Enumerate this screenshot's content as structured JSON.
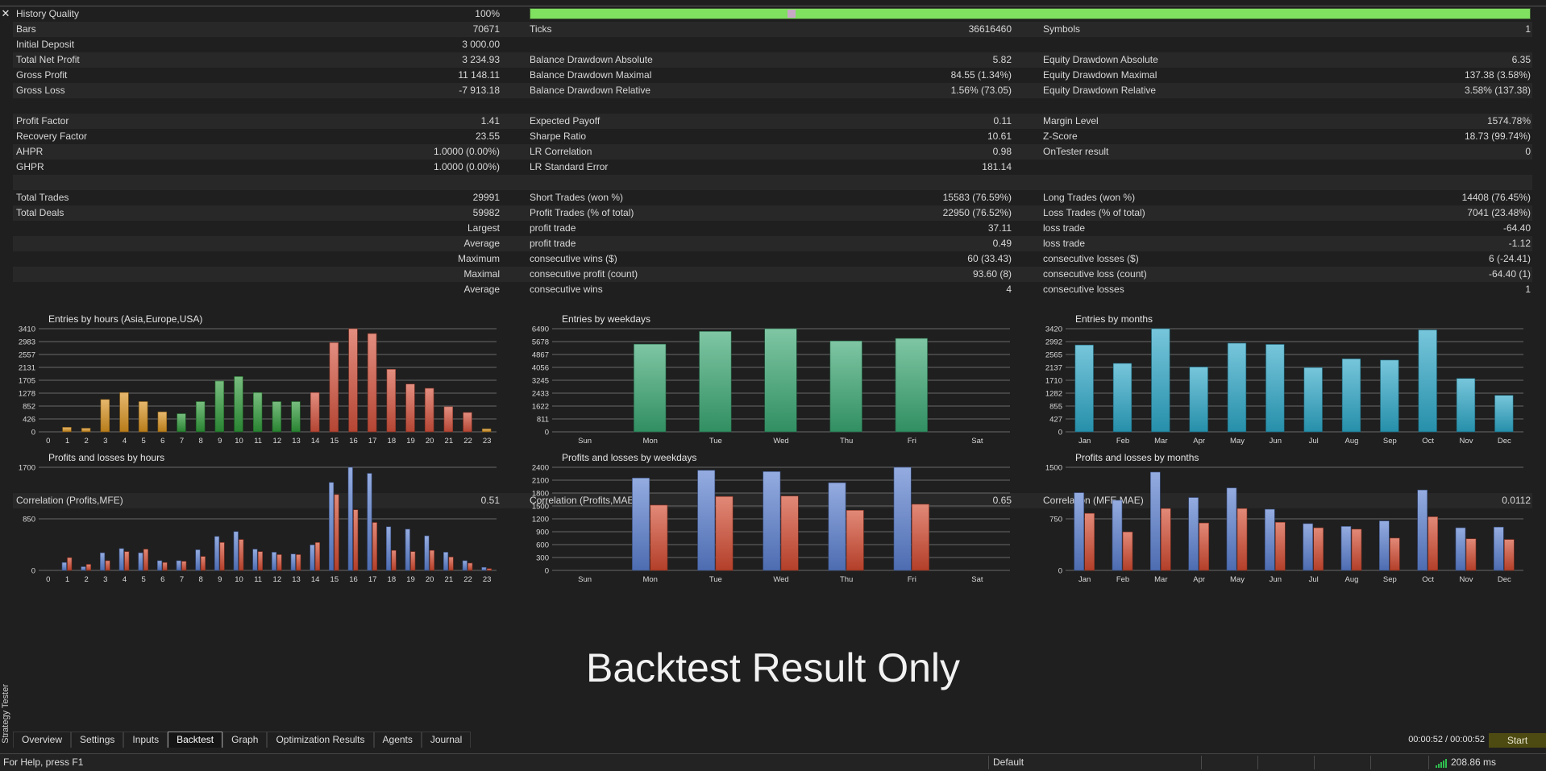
{
  "panel": {
    "side_label": "Strategy Tester",
    "close_icon": "close-icon"
  },
  "stats": {
    "history_quality": {
      "label": "History Quality",
      "value": "100%",
      "bar_fraction": 1.0
    },
    "rows": [
      {
        "c1": [
          "Bars",
          "70671"
        ],
        "c2": [
          "Ticks",
          "36616460"
        ],
        "c3": [
          "Symbols",
          "1"
        ]
      },
      {
        "c1": [
          "Initial Deposit",
          "3 000.00"
        ],
        "c2": [
          "",
          ""
        ],
        "c3": [
          "",
          ""
        ]
      },
      {
        "c1": [
          "Total Net Profit",
          "3 234.93"
        ],
        "c2": [
          "Balance Drawdown Absolute",
          "5.82"
        ],
        "c3": [
          "Equity Drawdown Absolute",
          "6.35"
        ]
      },
      {
        "c1": [
          "Gross Profit",
          "11 148.11"
        ],
        "c2": [
          "Balance Drawdown Maximal",
          "84.55 (1.34%)"
        ],
        "c3": [
          "Equity Drawdown Maximal",
          "137.38 (3.58%)"
        ]
      },
      {
        "c1": [
          "Gross Loss",
          "-7 913.18"
        ],
        "c2": [
          "Balance Drawdown Relative",
          "1.56% (73.05)"
        ],
        "c3": [
          "Equity Drawdown Relative",
          "3.58% (137.38)"
        ]
      },
      {
        "c1": [
          "",
          ""
        ],
        "c2": [
          "",
          ""
        ],
        "c3": [
          "",
          ""
        ]
      },
      {
        "c1": [
          "Profit Factor",
          "1.41"
        ],
        "c2": [
          "Expected Payoff",
          "0.11"
        ],
        "c3": [
          "Margin Level",
          "1574.78%"
        ]
      },
      {
        "c1": [
          "Recovery Factor",
          "23.55"
        ],
        "c2": [
          "Sharpe Ratio",
          "10.61"
        ],
        "c3": [
          "Z-Score",
          "18.73 (99.74%)"
        ]
      },
      {
        "c1": [
          "AHPR",
          "1.0000 (0.00%)"
        ],
        "c2": [
          "LR Correlation",
          "0.98"
        ],
        "c3": [
          "OnTester result",
          "0"
        ]
      },
      {
        "c1": [
          "GHPR",
          "1.0000 (0.00%)"
        ],
        "c2": [
          "LR Standard Error",
          "181.14"
        ],
        "c3": [
          "",
          ""
        ]
      },
      {
        "c1": [
          "",
          ""
        ],
        "c2": [
          "",
          ""
        ],
        "c3": [
          "",
          ""
        ]
      },
      {
        "c1": [
          "Total Trades",
          "29991"
        ],
        "c2": [
          "Short Trades (won %)",
          "15583 (76.59%)"
        ],
        "c3": [
          "Long Trades (won %)",
          "14408 (76.45%)"
        ]
      },
      {
        "c1": [
          "Total Deals",
          "59982"
        ],
        "c2": [
          "Profit Trades (% of total)",
          "22950 (76.52%)"
        ],
        "c3": [
          "Loss Trades (% of total)",
          "7041 (23.48%)"
        ]
      },
      {
        "c1": [
          "",
          "Largest"
        ],
        "c2": [
          "profit trade",
          "37.11"
        ],
        "c3": [
          "loss trade",
          "-64.40"
        ]
      },
      {
        "c1": [
          "",
          "Average"
        ],
        "c2": [
          "profit trade",
          "0.49"
        ],
        "c3": [
          "loss trade",
          "-1.12"
        ]
      },
      {
        "c1": [
          "",
          "Maximum"
        ],
        "c2": [
          "consecutive wins ($)",
          "60 (33.43)"
        ],
        "c3": [
          "consecutive losses ($)",
          "6 (-24.41)"
        ]
      },
      {
        "c1": [
          "",
          "Maximal"
        ],
        "c2": [
          "consecutive profit (count)",
          "93.60 (8)"
        ],
        "c3": [
          "consecutive loss (count)",
          "-64.40 (1)"
        ]
      },
      {
        "c1": [
          "",
          "Average"
        ],
        "c2": [
          "consecutive wins",
          "4"
        ],
        "c3": [
          "consecutive losses",
          "1"
        ]
      }
    ],
    "correlation": {
      "c1": [
        "Correlation (Profits,MFE)",
        "0.51"
      ],
      "c2": [
        "Correlation (Profits,MAE)",
        "0.65"
      ],
      "c3": [
        "Correlation (MFE,MAE)",
        "0.0112"
      ]
    }
  },
  "chart_data": [
    {
      "type": "bar",
      "title": "Entries by hours (Asia,Europe,USA)",
      "categories": [
        "0",
        "1",
        "2",
        "3",
        "4",
        "5",
        "6",
        "7",
        "8",
        "9",
        "10",
        "11",
        "12",
        "13",
        "14",
        "15",
        "16",
        "17",
        "18",
        "19",
        "20",
        "21",
        "22",
        "23"
      ],
      "y_ticks": [
        "3410",
        "2983",
        "2557",
        "2131",
        "1705",
        "1278",
        "852",
        "426",
        "0"
      ],
      "ylim": [
        0,
        3410
      ],
      "values": [
        0,
        150,
        120,
        1070,
        1300,
        1000,
        660,
        600,
        1000,
        1680,
        1830,
        1300,
        1000,
        1000,
        1300,
        2950,
        3410,
        3250,
        2070,
        1580,
        1440,
        830,
        640,
        100
      ],
      "colors": [
        "#d8921e",
        "#d8921e",
        "#d8921e",
        "#d8921e",
        "#d8921e",
        "#d8921e",
        "#d8921e",
        "#2f9a3a",
        "#2f9a3a",
        "#2f9a3a",
        "#2f9a3a",
        "#2f9a3a",
        "#2f9a3a",
        "#2f9a3a",
        "#d4513c",
        "#d4513c",
        "#d4513c",
        "#d4513c",
        "#d4513c",
        "#d4513c",
        "#d4513c",
        "#d4513c",
        "#d4513c",
        "#d8921e"
      ]
    },
    {
      "type": "bar",
      "title": "Entries by weekdays",
      "categories": [
        "Sun",
        "Mon",
        "Tue",
        "Wed",
        "Thu",
        "Fri",
        "Sat"
      ],
      "y_ticks": [
        "6490",
        "5678",
        "4867",
        "4056",
        "3245",
        "2433",
        "1622",
        "811",
        "0"
      ],
      "ylim": [
        0,
        6490
      ],
      "values": [
        0,
        5520,
        6320,
        6490,
        5720,
        5880,
        0
      ],
      "color": "#3aa873"
    },
    {
      "type": "bar",
      "title": "Entries by months",
      "categories": [
        "Jan",
        "Feb",
        "Mar",
        "Apr",
        "May",
        "Jun",
        "Jul",
        "Aug",
        "Sep",
        "Oct",
        "Nov",
        "Dec"
      ],
      "y_ticks": [
        "3420",
        "2992",
        "2565",
        "2137",
        "1710",
        "1282",
        "855",
        "427",
        "0"
      ],
      "ylim": [
        0,
        3420
      ],
      "values": [
        2880,
        2270,
        3420,
        2150,
        2940,
        2900,
        2130,
        2420,
        2380,
        3380,
        1770,
        1210
      ],
      "color": "#2da8c8"
    },
    {
      "type": "bar",
      "title": "Profits and losses by hours",
      "categories": [
        "0",
        "1",
        "2",
        "3",
        "4",
        "5",
        "6",
        "7",
        "8",
        "9",
        "10",
        "11",
        "12",
        "13",
        "14",
        "15",
        "16",
        "17",
        "18",
        "19",
        "20",
        "21",
        "22",
        "23"
      ],
      "y_ticks": [
        "1700",
        "850",
        "0"
      ],
      "ylim": [
        0,
        1700
      ],
      "series": [
        {
          "values": [
            0,
            130,
            60,
            290,
            360,
            290,
            160,
            160,
            340,
            560,
            640,
            350,
            300,
            270,
            420,
            1450,
            1700,
            1600,
            720,
            680,
            570,
            300,
            160,
            50
          ],
          "color": "#5b7fd0"
        },
        {
          "values": [
            0,
            210,
            100,
            160,
            310,
            350,
            130,
            150,
            230,
            460,
            510,
            310,
            260,
            260,
            460,
            1250,
            1000,
            790,
            330,
            310,
            330,
            220,
            120,
            30
          ],
          "color": "#d24a30"
        }
      ]
    },
    {
      "type": "bar",
      "title": "Profits and losses by weekdays",
      "categories": [
        "Sun",
        "Mon",
        "Tue",
        "Wed",
        "Thu",
        "Fri",
        "Sat"
      ],
      "y_ticks": [
        "2400",
        "2100",
        "1800",
        "1500",
        "1200",
        "900",
        "600",
        "300",
        "0"
      ],
      "ylim": [
        0,
        2400
      ],
      "series": [
        {
          "values": [
            0,
            2150,
            2330,
            2300,
            2040,
            2400,
            0
          ],
          "color": "#5b7fd0"
        },
        {
          "values": [
            0,
            1520,
            1720,
            1730,
            1400,
            1540,
            0
          ],
          "color": "#d24a30"
        }
      ]
    },
    {
      "type": "bar",
      "title": "Profits and losses by months",
      "categories": [
        "Jan",
        "Feb",
        "Mar",
        "Apr",
        "May",
        "Jun",
        "Jul",
        "Aug",
        "Sep",
        "Oct",
        "Nov",
        "Dec"
      ],
      "y_ticks": [
        "1500",
        "750",
        "0"
      ],
      "ylim": [
        0,
        1500
      ],
      "series": [
        {
          "values": [
            1130,
            1020,
            1430,
            1060,
            1200,
            890,
            680,
            640,
            720,
            1170,
            620,
            630
          ],
          "color": "#5b7fd0"
        },
        {
          "values": [
            830,
            560,
            900,
            690,
            900,
            700,
            620,
            600,
            470,
            780,
            460,
            450
          ],
          "color": "#d24a30"
        }
      ]
    }
  ],
  "banner": "Backtest Result Only",
  "tabs": [
    {
      "label": "Overview",
      "active": false
    },
    {
      "label": "Settings",
      "active": false
    },
    {
      "label": "Inputs",
      "active": false
    },
    {
      "label": "Backtest",
      "active": true
    },
    {
      "label": "Graph",
      "active": false
    },
    {
      "label": "Optimization Results",
      "active": false
    },
    {
      "label": "Agents",
      "active": false
    },
    {
      "label": "Journal",
      "active": false
    }
  ],
  "timer": "00:00:52 / 00:00:52",
  "start_label": "Start",
  "status": {
    "help": "For Help, press F1",
    "profile": "Default",
    "ping": "208.86 ms"
  }
}
